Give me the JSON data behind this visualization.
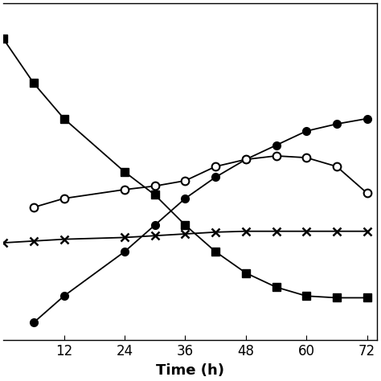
{
  "xlabel": "Time (h)",
  "xticks": [
    12,
    24,
    36,
    48,
    60,
    72
  ],
  "series": {
    "filled_circle": {
      "x": [
        6,
        12,
        24,
        30,
        36,
        42,
        48,
        54,
        60,
        66,
        72
      ],
      "y": [
        1.0,
        2.5,
        5.0,
        6.5,
        8.0,
        9.2,
        10.2,
        11.0,
        11.8,
        12.2,
        12.5
      ],
      "marker": "o",
      "color": "#000000",
      "linewidth": 1.3,
      "markersize": 7,
      "fillstyle": "full"
    },
    "open_circle": {
      "x": [
        6,
        12,
        24,
        30,
        36,
        42,
        48,
        54,
        60,
        66,
        72
      ],
      "y": [
        7.5,
        8.0,
        8.5,
        8.7,
        9.0,
        9.8,
        10.2,
        10.4,
        10.3,
        9.8,
        8.3
      ],
      "marker": "o",
      "color": "#000000",
      "linewidth": 1.3,
      "markersize": 7,
      "fillstyle": "none"
    },
    "filled_square": {
      "x": [
        0,
        6,
        12,
        24,
        30,
        36,
        42,
        48,
        54,
        60,
        66,
        72
      ],
      "y": [
        17.0,
        14.5,
        12.5,
        9.5,
        8.2,
        6.5,
        5.0,
        3.8,
        3.0,
        2.5,
        2.4,
        2.4
      ],
      "marker": "s",
      "color": "#000000",
      "linewidth": 1.3,
      "markersize": 7,
      "fillstyle": "full"
    },
    "cross": {
      "x": [
        0,
        6,
        12,
        24,
        30,
        36,
        42,
        48,
        54,
        60,
        66,
        72
      ],
      "y": [
        5.5,
        5.6,
        5.7,
        5.8,
        5.9,
        6.0,
        6.1,
        6.15,
        6.15,
        6.15,
        6.15,
        6.15
      ],
      "marker": "x",
      "color": "#000000",
      "linewidth": 1.3,
      "markersize": 7,
      "fillstyle": "full"
    }
  },
  "xlim": [
    0,
    74
  ],
  "ylim": [
    0,
    19
  ],
  "background_color": "#ffffff"
}
